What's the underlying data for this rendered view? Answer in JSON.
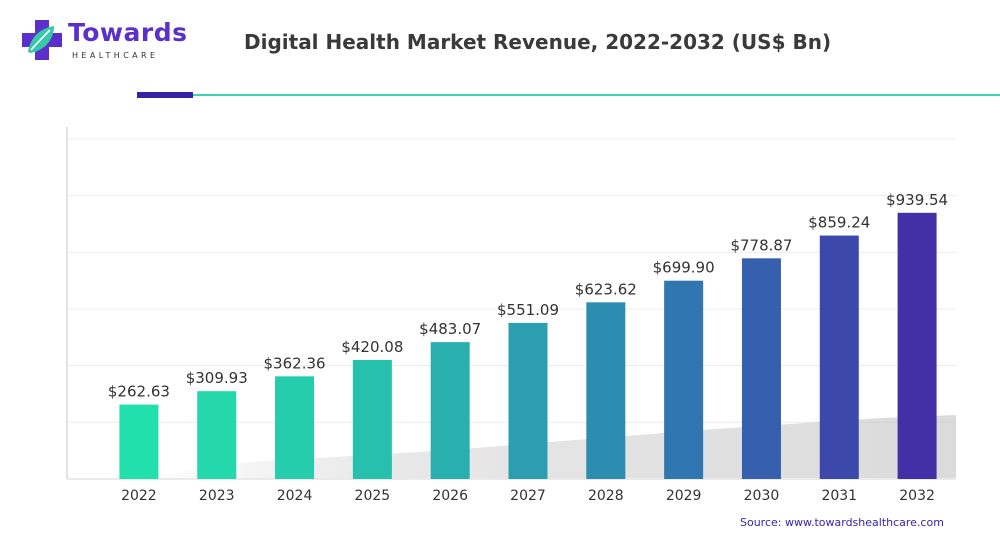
{
  "brand": {
    "name": "Towards",
    "sub": "HEALTHCARE"
  },
  "chart_data": {
    "type": "bar",
    "title": "Digital Health Market Revenue, 2022-2032 (US$ Bn)",
    "categories": [
      "2022",
      "2023",
      "2024",
      "2025",
      "2026",
      "2027",
      "2028",
      "2029",
      "2030",
      "2031",
      "2032"
    ],
    "values": [
      262.63,
      309.93,
      362.36,
      420.08,
      483.07,
      551.09,
      623.62,
      699.9,
      778.87,
      859.24,
      939.54
    ],
    "value_labels": [
      "$262.63",
      "$309.93",
      "$362.36",
      "$420.08",
      "$483.07",
      "$551.09",
      "$623.62",
      "$699.90",
      "$778.87",
      "$859.24",
      "$939.54"
    ],
    "ylim": [
      0,
      1200
    ],
    "grid": true,
    "colors": [
      "#22e0ab",
      "#24d8ab",
      "#25cdac",
      "#27c0ad",
      "#29b0ae",
      "#2b9fb0",
      "#2d8db1",
      "#3077b1",
      "#365fae",
      "#3c48aa",
      "#4330a6"
    ]
  },
  "footer": {
    "source": "Source: www.towardshealthcare.com"
  }
}
